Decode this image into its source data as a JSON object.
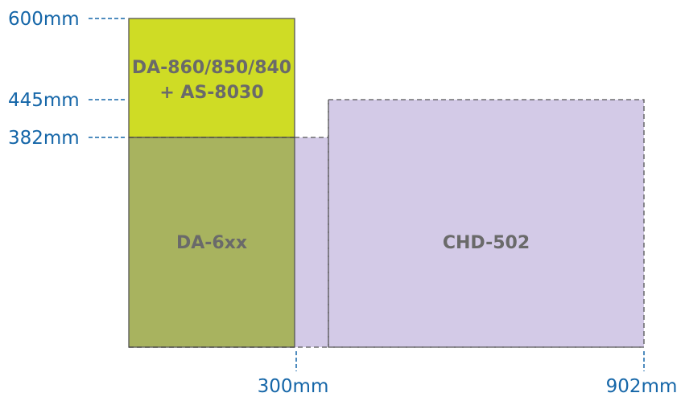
{
  "dimensions": {
    "height_600": "600mm",
    "height_445": "445mm",
    "height_382": "382mm",
    "width_300": "300mm",
    "width_902": "902mm"
  },
  "components": {
    "da_860_line1": "DA-860/850/840",
    "da_860_line2": "+ AS-8030",
    "da_6xx": "DA-6xx",
    "chd_502": "CHD-502"
  },
  "colors": {
    "label_blue": "#1566a8",
    "da_860_fill": "#cfdc25",
    "da_6xx_fill": "#a8b35f",
    "chd_502_fill": "#d3cae7",
    "box_text": "#6a6a6a"
  }
}
